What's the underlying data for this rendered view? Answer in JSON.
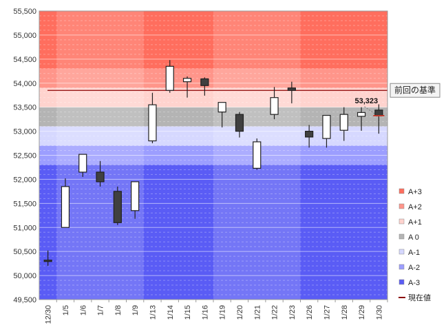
{
  "chart_data": {
    "type": "candlestick",
    "categories": [
      "12/30",
      "1/5",
      "1/6",
      "1/7",
      "1/8",
      "1/9",
      "1/13",
      "1/14",
      "1/15",
      "1/16",
      "1/19",
      "1/20",
      "1/21",
      "1/22",
      "1/23",
      "1/26",
      "1/27",
      "1/28",
      "1/29",
      "1/30"
    ],
    "series": [
      {
        "name": "price",
        "ohlc": [
          [
            50320,
            50520,
            50200,
            50300
          ],
          [
            51000,
            52020,
            51000,
            51850
          ],
          [
            52150,
            52520,
            52050,
            52520
          ],
          [
            52150,
            52380,
            51850,
            51950
          ],
          [
            51750,
            51850,
            51050,
            51100
          ],
          [
            51350,
            51950,
            51180,
            51950
          ],
          [
            52800,
            53800,
            52750,
            53550
          ],
          [
            53850,
            54480,
            53800,
            54350
          ],
          [
            54030,
            54140,
            53700,
            54100
          ],
          [
            54090,
            54120,
            53740,
            53950
          ],
          [
            53400,
            53600,
            53080,
            53600
          ],
          [
            53350,
            53400,
            52870,
            53000
          ],
          [
            52230,
            52850,
            52200,
            52780
          ],
          [
            53350,
            53920,
            53250,
            53700
          ],
          [
            53900,
            54030,
            53580,
            53850
          ],
          [
            53000,
            53130,
            52660,
            52880
          ],
          [
            52850,
            53330,
            52660,
            53330
          ],
          [
            53020,
            53500,
            52800,
            53350
          ],
          [
            53310,
            53500,
            53010,
            53390
          ],
          [
            53440,
            53560,
            52950,
            53330
          ]
        ]
      }
    ],
    "bands": [
      {
        "name": "A+3",
        "from": 54300,
        "to": 55500,
        "color": "#ff6e5e"
      },
      {
        "name": "A+2",
        "from": 53900,
        "to": 54300,
        "color": "#ff958a"
      },
      {
        "name": "A+1",
        "from": 53500,
        "to": 53900,
        "color": "#ffd3ce"
      },
      {
        "name": "A 0",
        "from": 53100,
        "to": 53500,
        "color": "#b4b4b4"
      },
      {
        "name": "A-1",
        "from": 52700,
        "to": 53100,
        "color": "#d6d8ff"
      },
      {
        "name": "A-2",
        "from": 52300,
        "to": 52700,
        "color": "#9c9eff"
      },
      {
        "name": "A-3",
        "from": 49500,
        "to": 52300,
        "color": "#5a5cf5"
      }
    ],
    "reference": {
      "label": "前回の基準",
      "value": 53850,
      "color": "#8b0000"
    },
    "current": {
      "label": "現在値",
      "value": 53323,
      "color": "#8b0000",
      "value_label": "53,323"
    },
    "legend": [
      "A+3",
      "A+2",
      "A+1",
      "A 0",
      "A-1",
      "A-2",
      "A-3",
      "現在値"
    ],
    "ylim": [
      49500,
      55500
    ],
    "yticks": [
      "49,500",
      "50,000",
      "50,500",
      "51,000",
      "51,500",
      "52,000",
      "52,500",
      "53,000",
      "53,500",
      "54,000",
      "54,500",
      "55,000",
      "55,500"
    ],
    "title": "",
    "xlabel": "",
    "ylabel": ""
  },
  "colors": {
    "up_body": "#ffffff",
    "down_body": "#404040",
    "candle_stroke": "#202020"
  }
}
